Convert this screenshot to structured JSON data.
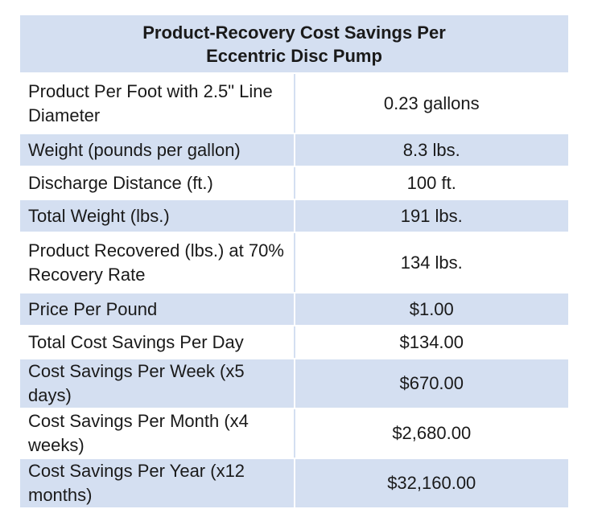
{
  "title_line1": "Product-Recovery Cost Savings Per",
  "title_line2": "Eccentric Disc Pump",
  "rows": [
    {
      "label": "Product Per Foot with 2.5\" Line Diameter",
      "value": "0.23 gallons"
    },
    {
      "label": "Weight (pounds per gallon)",
      "value": "8.3 lbs."
    },
    {
      "label": "Discharge Distance (ft.)",
      "value": "100 ft."
    },
    {
      "label": "Total Weight (lbs.)",
      "value": "191 lbs."
    },
    {
      "label": "Product Recovered (lbs.) at 70% Recovery Rate",
      "value": "134 lbs."
    },
    {
      "label": "Price Per Pound",
      "value": "$1.00"
    },
    {
      "label": "Total Cost Savings Per Day",
      "value": "$134.00"
    },
    {
      "label": "Cost Savings Per Week (x5 days)",
      "value": "$670.00"
    },
    {
      "label": "Cost Savings Per Month (x4 weeks)",
      "value": "$2,680.00"
    },
    {
      "label": "Cost Savings Per Year (x12 months)",
      "value": "$32,160.00"
    }
  ],
  "colors": {
    "shade": "#d4dff1",
    "text": "#1a1a1a"
  }
}
